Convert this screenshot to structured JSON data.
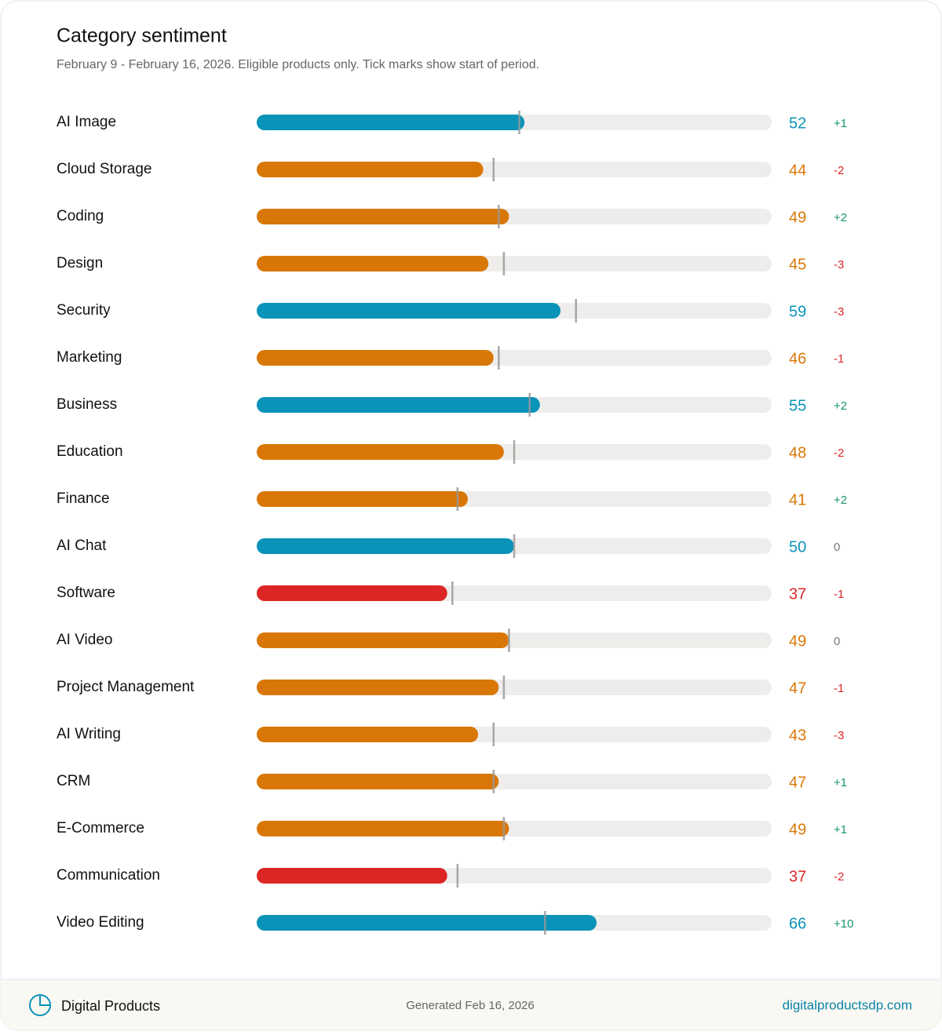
{
  "chart_data": {
    "type": "bar",
    "title": "Category sentiment",
    "subtitle": "February 9 - February 16, 2026. Eligible products only. Tick marks show start of period.",
    "categories": [
      "AI Image",
      "Cloud Storage",
      "Coding",
      "Design",
      "Security",
      "Marketing",
      "Business",
      "Education",
      "Finance",
      "AI Chat",
      "Software",
      "AI Video",
      "Project Management",
      "AI Writing",
      "CRM",
      "E-Commerce",
      "Communication",
      "Video Editing"
    ],
    "values": [
      52,
      44,
      49,
      45,
      59,
      46,
      55,
      48,
      41,
      50,
      37,
      49,
      47,
      43,
      47,
      49,
      37,
      66
    ],
    "colors": [
      "#0a93b8",
      "#d97706",
      "#d97706",
      "#d97706",
      "#0a93b8",
      "#d97706",
      "#0a93b8",
      "#d97706",
      "#d97706",
      "#0a93b8",
      "#dc2626",
      "#d97706",
      "#d97706",
      "#d97706",
      "#d97706",
      "#d97706",
      "#dc2626",
      "#0a93b8"
    ],
    "changes": [
      1,
      -2,
      2,
      -3,
      -3,
      -1,
      2,
      -2,
      2,
      0,
      -1,
      0,
      -1,
      -3,
      1,
      1,
      -2,
      10
    ],
    "change_labels": [
      "+1",
      "-2",
      "+2",
      "-3",
      "-3",
      "-1",
      "+2",
      "-2",
      "+2",
      "0",
      "-1",
      "0",
      "-1",
      "-3",
      "+1",
      "+1",
      "-2",
      "+10"
    ],
    "xlim": [
      0,
      100
    ],
    "track_color": "#eeedeb"
  },
  "footer": {
    "brand": "Digital Products",
    "generated": "Generated Feb 16, 2026",
    "url": "digitalproductsdp.com"
  }
}
